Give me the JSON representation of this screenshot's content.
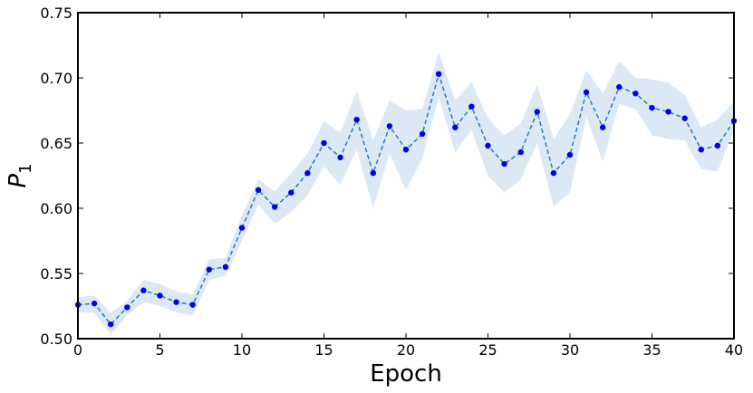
{
  "chart_data": {
    "type": "line",
    "title": "",
    "xlabel": "Epoch",
    "ylabel": "P",
    "ylabel_subscript": "1",
    "xlim": [
      0,
      40
    ],
    "ylim": [
      0.5,
      0.75
    ],
    "xticks": [
      0,
      5,
      10,
      15,
      20,
      25,
      30,
      35,
      40
    ],
    "yticks": [
      "0.50",
      "0.55",
      "0.60",
      "0.65",
      "0.70",
      "0.75"
    ],
    "grid": false,
    "legend": "none",
    "colors": {
      "line": "#2b7bba",
      "marker": "#0000ee",
      "band": "#dce9f5"
    },
    "series": [
      {
        "x": [
          0,
          1,
          2,
          3,
          4,
          5,
          6,
          7,
          8,
          9,
          10,
          11,
          12,
          13,
          14,
          15,
          16,
          17,
          18,
          19,
          20,
          21,
          22,
          23,
          24,
          25,
          26,
          27,
          28,
          29,
          30,
          31,
          32,
          33,
          34,
          35,
          36,
          37,
          38,
          39,
          40
        ],
        "y": [
          0.526,
          0.527,
          0.511,
          0.524,
          0.537,
          0.533,
          0.528,
          0.526,
          0.553,
          0.555,
          0.585,
          0.614,
          0.601,
          0.612,
          0.627,
          0.65,
          0.639,
          0.668,
          0.627,
          0.663,
          0.645,
          0.657,
          0.703,
          0.662,
          0.678,
          0.648,
          0.634,
          0.643,
          0.674,
          0.627,
          0.641,
          0.689,
          0.662,
          0.693,
          0.688,
          0.677,
          0.674,
          0.669,
          0.645,
          0.648,
          0.667
        ],
        "lower": [
          0.52,
          0.52,
          0.503,
          0.518,
          0.528,
          0.525,
          0.52,
          0.518,
          0.545,
          0.548,
          0.575,
          0.603,
          0.588,
          0.597,
          0.61,
          0.632,
          0.618,
          0.645,
          0.6,
          0.642,
          0.614,
          0.638,
          0.685,
          0.643,
          0.66,
          0.625,
          0.612,
          0.622,
          0.65,
          0.601,
          0.612,
          0.67,
          0.636,
          0.68,
          0.676,
          0.656,
          0.653,
          0.652,
          0.63,
          0.628,
          0.66
        ],
        "upper": [
          0.532,
          0.533,
          0.52,
          0.529,
          0.545,
          0.542,
          0.536,
          0.534,
          0.561,
          0.562,
          0.595,
          0.622,
          0.613,
          0.627,
          0.642,
          0.667,
          0.658,
          0.69,
          0.652,
          0.683,
          0.675,
          0.676,
          0.72,
          0.683,
          0.697,
          0.669,
          0.656,
          0.665,
          0.695,
          0.653,
          0.672,
          0.706,
          0.688,
          0.713,
          0.7,
          0.699,
          0.696,
          0.687,
          0.662,
          0.668,
          0.682
        ]
      }
    ]
  }
}
